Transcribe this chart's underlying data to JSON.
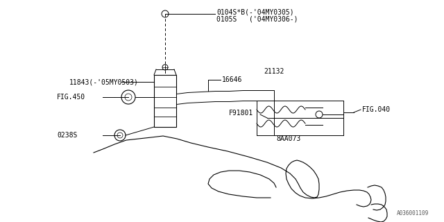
{
  "title": "",
  "bg_color": "#ffffff",
  "line_color": "#000000",
  "part_color": "#888888",
  "diagram_color": "#555555",
  "labels": {
    "0104S": "0104S*B(-'04MY0305)",
    "0105S": "0105S   ('04MY0306-)",
    "11843": "11843(-'05MY0503)",
    "FIG450": "FIG.450",
    "21132": "21132",
    "16646": "16646",
    "F91801": "F91801",
    "FIG040": "FIG.040",
    "0238S": "0238S",
    "8AA073": "8AA073"
  },
  "watermark": "A036001109",
  "font_size": 7
}
